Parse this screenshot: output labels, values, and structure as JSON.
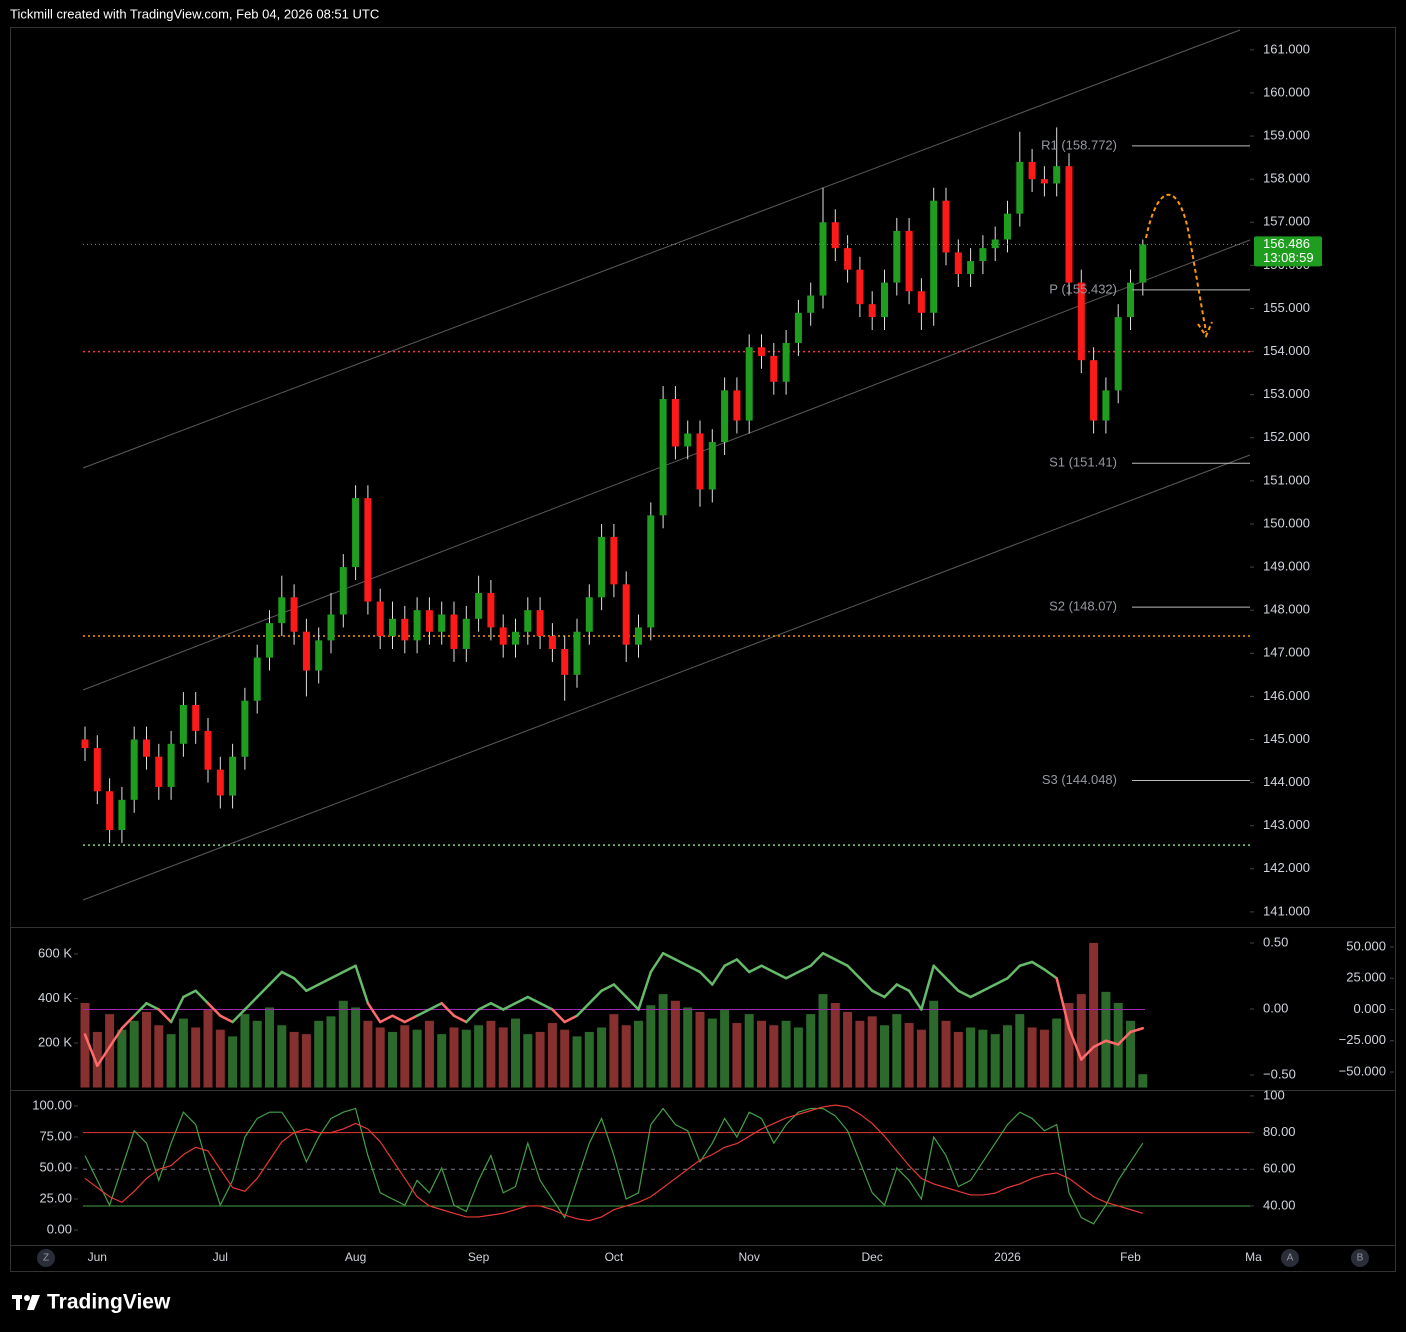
{
  "header": {
    "title": "Tickmill created with TradingView.com, Feb 04, 2026 08:51 UTC"
  },
  "footer": {
    "brand": "TradingView"
  },
  "buttons": [
    "Z",
    "A",
    "B"
  ],
  "chart_data": [
    {
      "type": "candlestick",
      "categories": [
        null,
        "Jun",
        null,
        null,
        null,
        null,
        null,
        null,
        null,
        null,
        null,
        "Jul",
        null,
        null,
        null,
        null,
        null,
        null,
        null,
        null,
        null,
        null,
        "Aug",
        null,
        null,
        null,
        null,
        null,
        null,
        null,
        null,
        null,
        "Sep",
        null,
        null,
        null,
        null,
        null,
        null,
        null,
        null,
        null,
        null,
        "Oct",
        null,
        null,
        null,
        null,
        null,
        null,
        null,
        null,
        null,
        null,
        "Nov",
        null,
        null,
        null,
        null,
        null,
        null,
        null,
        null,
        null,
        "Dec",
        null,
        null,
        null,
        null,
        null,
        null,
        null,
        null,
        null,
        null,
        "2026",
        null,
        null,
        null,
        null,
        null,
        null,
        null,
        null,
        null,
        "Feb",
        null,
        null,
        null,
        null,
        null,
        null,
        null,
        null,
        null,
        "Ma"
      ],
      "open": [
        145.0,
        144.8,
        143.8,
        142.9,
        143.6,
        145.0,
        144.6,
        143.9,
        144.9,
        145.8,
        145.2,
        144.3,
        143.7,
        144.6,
        145.9,
        146.9,
        147.7,
        148.3,
        147.5,
        146.6,
        147.3,
        147.9,
        149.0,
        150.6,
        148.2,
        147.4,
        147.8,
        147.3,
        148.0,
        147.5,
        147.9,
        147.1,
        147.8,
        148.4,
        147.6,
        147.2,
        147.5,
        148.0,
        147.4,
        147.1,
        146.5,
        147.5,
        148.3,
        149.7,
        148.6,
        147.2,
        147.6,
        150.2,
        152.9,
        151.8,
        152.1,
        150.8,
        151.9,
        153.1,
        152.4,
        154.1,
        153.9,
        153.3,
        154.2,
        154.9,
        155.3,
        157.0,
        156.4,
        155.9,
        155.1,
        154.8,
        155.6,
        156.8,
        155.4,
        154.9,
        157.5,
        156.3,
        155.8,
        156.1,
        156.4,
        156.6,
        157.2,
        158.4,
        158.0,
        157.9,
        158.3,
        155.6,
        153.8,
        152.4,
        153.1,
        154.8,
        155.6,
        null,
        null,
        null,
        null,
        null,
        null,
        null,
        null,
        null
      ],
      "high": [
        145.3,
        145.1,
        144.1,
        143.9,
        145.3,
        145.3,
        144.9,
        145.2,
        146.1,
        146.1,
        145.5,
        144.6,
        144.9,
        146.2,
        147.2,
        148.0,
        148.8,
        148.6,
        147.8,
        147.6,
        148.4,
        149.3,
        150.9,
        150.9,
        148.5,
        148.2,
        148.1,
        148.3,
        148.3,
        148.2,
        148.2,
        148.1,
        148.8,
        148.7,
        147.9,
        147.8,
        148.3,
        148.3,
        147.7,
        147.4,
        147.8,
        148.6,
        150.0,
        150.0,
        148.9,
        147.9,
        150.5,
        153.2,
        153.2,
        152.4,
        152.4,
        152.2,
        153.4,
        153.4,
        154.4,
        154.4,
        154.2,
        154.5,
        155.2,
        155.6,
        157.8,
        157.3,
        156.7,
        156.2,
        155.4,
        155.9,
        157.1,
        157.1,
        155.7,
        157.8,
        157.8,
        156.6,
        156.4,
        156.7,
        156.9,
        157.5,
        159.1,
        158.7,
        158.3,
        159.2,
        158.6,
        155.9,
        154.1,
        153.4,
        155.1,
        155.9,
        156.6,
        null,
        null,
        null,
        null,
        null,
        null,
        null,
        null,
        null
      ],
      "low": [
        144.5,
        143.5,
        142.6,
        142.6,
        143.3,
        144.3,
        143.6,
        143.6,
        144.6,
        144.9,
        144.0,
        143.4,
        143.4,
        144.3,
        145.6,
        146.6,
        147.4,
        147.2,
        146.0,
        146.3,
        147.0,
        147.6,
        148.7,
        147.9,
        147.1,
        147.1,
        147.0,
        147.0,
        147.2,
        147.2,
        146.8,
        146.8,
        147.5,
        147.3,
        146.9,
        146.9,
        147.2,
        147.1,
        146.8,
        145.9,
        146.2,
        147.2,
        148.0,
        148.3,
        146.8,
        146.9,
        147.3,
        149.9,
        151.5,
        151.5,
        150.4,
        150.5,
        151.6,
        152.1,
        152.1,
        153.6,
        153.0,
        153.0,
        153.9,
        154.6,
        155.0,
        156.1,
        155.6,
        154.8,
        154.5,
        154.5,
        155.3,
        155.1,
        154.5,
        154.6,
        156.0,
        155.5,
        155.5,
        155.8,
        156.1,
        156.3,
        156.9,
        157.7,
        157.6,
        157.6,
        155.3,
        153.5,
        152.1,
        152.1,
        152.8,
        154.5,
        155.3,
        null,
        null,
        null,
        null,
        null,
        null,
        null,
        null,
        null
      ],
      "close": [
        144.8,
        143.8,
        142.9,
        143.6,
        145.0,
        144.6,
        143.9,
        144.9,
        145.8,
        145.2,
        144.3,
        143.7,
        144.6,
        145.9,
        146.9,
        147.7,
        148.3,
        147.5,
        146.6,
        147.3,
        147.9,
        149.0,
        150.6,
        148.2,
        147.4,
        147.8,
        147.3,
        148.0,
        147.5,
        147.9,
        147.1,
        147.8,
        148.4,
        147.6,
        147.2,
        147.5,
        148.0,
        147.4,
        147.1,
        146.5,
        147.5,
        148.3,
        149.7,
        148.6,
        147.2,
        147.6,
        150.2,
        152.9,
        151.8,
        152.1,
        150.8,
        151.9,
        153.1,
        152.4,
        154.1,
        153.9,
        153.3,
        154.2,
        154.9,
        155.3,
        157.0,
        156.4,
        155.9,
        155.1,
        154.8,
        155.6,
        156.8,
        155.4,
        154.9,
        157.5,
        156.3,
        155.8,
        156.1,
        156.4,
        156.6,
        157.2,
        158.4,
        158.0,
        157.9,
        158.3,
        155.6,
        153.8,
        152.4,
        153.1,
        154.8,
        155.6,
        156.486,
        null,
        null,
        null,
        null,
        null,
        null,
        null,
        null,
        null
      ],
      "up_color": "#1f9d1f",
      "down_color": "#ff1a1a",
      "ylim": [
        140.65,
        161.53
      ],
      "yticks": [
        {
          "value": 141,
          "label": "141.000"
        },
        {
          "value": 142,
          "label": "142.000"
        },
        {
          "value": 143,
          "label": "143.000"
        },
        {
          "value": 144,
          "label": "144.000"
        },
        {
          "value": 145,
          "label": "145.000"
        },
        {
          "value": 146,
          "label": "146.000"
        },
        {
          "value": 147,
          "label": "147.000"
        },
        {
          "value": 148,
          "label": "148.000"
        },
        {
          "value": 149,
          "label": "149.000"
        },
        {
          "value": 150,
          "label": "150.000"
        },
        {
          "value": 151,
          "label": "151.000"
        },
        {
          "value": 152,
          "label": "152.000"
        },
        {
          "value": 153,
          "label": "153.000"
        },
        {
          "value": 154,
          "label": "154.000"
        },
        {
          "value": 155,
          "label": "155.000"
        },
        {
          "value": 156,
          "label": "156.000"
        },
        {
          "value": 157,
          "label": "157.000"
        },
        {
          "value": 158,
          "label": "158.000"
        },
        {
          "value": 159,
          "label": "159.000"
        },
        {
          "value": 160,
          "label": "160.000"
        },
        {
          "value": 161,
          "label": "161.000"
        }
      ],
      "levels": [
        {
          "value": 158.772,
          "label": "R1 (158.772)"
        },
        {
          "value": 155.432,
          "label": "P (155.432)"
        },
        {
          "value": 151.41,
          "label": "S1 (151.41)"
        },
        {
          "value": 148.07,
          "label": "S2 (148.07)"
        },
        {
          "value": 144.048,
          "label": "S3 (144.048)"
        }
      ],
      "hlines": [
        {
          "value": 154.0,
          "color": "#f23645"
        },
        {
          "value": 147.4,
          "color": "#ff9800"
        },
        {
          "value": 142.55,
          "color": "#7cd67c"
        }
      ],
      "price_label": 156.486,
      "countdown": "13:08:59"
    },
    {
      "type": "bar",
      "values": [
        380000,
        250000,
        330000,
        260000,
        300000,
        340000,
        280000,
        240000,
        310000,
        270000,
        350000,
        260000,
        230000,
        330000,
        300000,
        360000,
        280000,
        250000,
        240000,
        300000,
        320000,
        390000,
        360000,
        300000,
        270000,
        250000,
        280000,
        260000,
        300000,
        240000,
        270000,
        260000,
        280000,
        300000,
        270000,
        310000,
        240000,
        250000,
        290000,
        260000,
        230000,
        250000,
        270000,
        330000,
        280000,
        300000,
        370000,
        420000,
        390000,
        360000,
        340000,
        310000,
        350000,
        290000,
        330000,
        300000,
        280000,
        300000,
        270000,
        330000,
        420000,
        380000,
        340000,
        300000,
        320000,
        280000,
        330000,
        290000,
        260000,
        390000,
        300000,
        250000,
        270000,
        260000,
        240000,
        280000,
        330000,
        270000,
        260000,
        310000,
        380000,
        420000,
        650000,
        430000,
        380000,
        300000,
        60000
      ],
      "up_color": "#2b6a2b",
      "down_color": "#873030",
      "ylim": [
        -11000,
        717000
      ],
      "yticks": [
        {
          "value": 600000,
          "label": "600 K"
        },
        {
          "value": 400000,
          "label": "400 K"
        },
        {
          "value": 200000,
          "label": "200 K"
        }
      ],
      "series": [
        {
          "axis": "y2",
          "color": "#66bb6a",
          "down_color": "#ff6b6b",
          "values": [
            -20,
            -45,
            -30,
            -15,
            -5,
            5,
            0,
            -10,
            10,
            15,
            5,
            -5,
            -10,
            0,
            10,
            20,
            30,
            25,
            15,
            20,
            25,
            30,
            35,
            5,
            -10,
            -5,
            -10,
            -5,
            0,
            5,
            -5,
            -10,
            0,
            5,
            0,
            5,
            10,
            5,
            0,
            -10,
            -5,
            5,
            15,
            20,
            10,
            0,
            30,
            45,
            40,
            35,
            30,
            20,
            35,
            40,
            30,
            35,
            30,
            25,
            30,
            35,
            45,
            40,
            35,
            25,
            15,
            10,
            20,
            15,
            0,
            35,
            25,
            15,
            10,
            15,
            20,
            25,
            35,
            38,
            32,
            25,
            -15,
            -40,
            -30,
            -25,
            -28,
            -18,
            -15
          ]
        }
      ],
      "y2lim": [
        -64.4,
        65.2
      ],
      "y2ticks": [
        {
          "value": 50,
          "label": "50.000"
        },
        {
          "value": 25,
          "label": "25.000"
        },
        {
          "value": 0,
          "label": "0.000"
        },
        {
          "value": -25,
          "label": "−25.000"
        },
        {
          "value": -50,
          "label": "−50.000"
        }
      ],
      "y3lim": [
        -0.614,
        0.614
      ],
      "y3ticks": [
        {
          "value": 0.5,
          "label": "0.50"
        },
        {
          "value": 0,
          "label": "0.00"
        },
        {
          "value": -0.5,
          "label": "−0.50"
        }
      ],
      "hlines": [
        {
          "value": 0,
          "axis": "y2",
          "color": "#9c27b0"
        }
      ]
    },
    {
      "type": "line",
      "series": [
        {
          "color": "#43a047",
          "values": [
            60,
            40,
            20,
            50,
            80,
            70,
            40,
            70,
            95,
            85,
            50,
            20,
            40,
            75,
            90,
            95,
            95,
            80,
            55,
            75,
            90,
            95,
            98,
            60,
            30,
            25,
            20,
            40,
            30,
            50,
            20,
            15,
            40,
            60,
            30,
            35,
            70,
            40,
            25,
            10,
            40,
            70,
            90,
            60,
            25,
            30,
            85,
            98,
            85,
            80,
            55,
            70,
            90,
            75,
            95,
            90,
            70,
            85,
            95,
            98,
            98,
            92,
            80,
            55,
            30,
            20,
            50,
            40,
            25,
            75,
            60,
            35,
            40,
            55,
            70,
            85,
            95,
            90,
            80,
            85,
            30,
            10,
            5,
            20,
            40,
            55,
            70
          ]
        },
        {
          "color": "#e53935",
          "axis": "y2",
          "values": [
            55,
            50,
            45,
            42,
            48,
            55,
            60,
            62,
            68,
            72,
            70,
            60,
            50,
            48,
            55,
            65,
            75,
            80,
            82,
            80,
            80,
            82,
            85,
            82,
            75,
            65,
            55,
            45,
            40,
            38,
            36,
            34,
            34,
            35,
            36,
            38,
            40,
            40,
            38,
            35,
            33,
            32,
            34,
            38,
            40,
            42,
            45,
            50,
            55,
            60,
            65,
            68,
            72,
            74,
            78,
            82,
            85,
            88,
            90,
            92,
            94,
            95,
            94,
            90,
            85,
            78,
            70,
            62,
            55,
            52,
            50,
            48,
            46,
            46,
            47,
            50,
            52,
            55,
            57,
            58,
            55,
            50,
            45,
            42,
            40,
            38,
            36
          ]
        }
      ],
      "ylim": [
        -12.1,
        112.1
      ],
      "yticks": [
        {
          "value": 100,
          "label": "100.00"
        },
        {
          "value": 75,
          "label": "75.00"
        },
        {
          "value": 50,
          "label": "50.00"
        },
        {
          "value": 25,
          "label": "25.00"
        },
        {
          "value": 0,
          "label": "0.00"
        }
      ],
      "y2lim": [
        18.7,
        102.7
      ],
      "y2ticks": [
        100,
        {
          "value": 80,
          "label": "80.00"
        },
        {
          "value": 60,
          "label": "60.00"
        },
        {
          "value": 40,
          "label": "40.00"
        }
      ],
      "hlines": [
        {
          "value": 80,
          "axis": "y2",
          "color": "#e53935"
        },
        {
          "value": 60,
          "axis": "y2",
          "color": "#787b86",
          "dash": true
        },
        {
          "value": 40,
          "axis": "y2",
          "color": "#43a047"
        }
      ]
    }
  ]
}
